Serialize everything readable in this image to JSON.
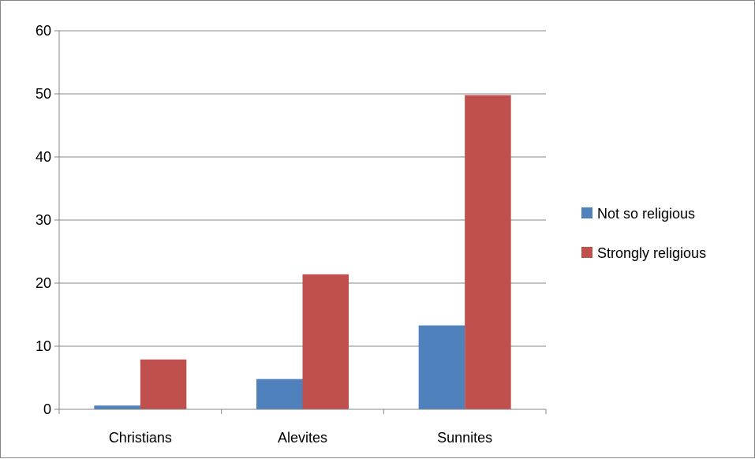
{
  "chart_data": {
    "type": "bar",
    "categories": [
      "Christians",
      "Alevites",
      "Sunnites"
    ],
    "series": [
      {
        "name": "Not so religious",
        "values": [
          0.6,
          4.8,
          13.3
        ],
        "color": "#4f81bd"
      },
      {
        "name": "Strongly religious",
        "values": [
          7.9,
          21.4,
          49.8
        ],
        "color": "#c0504d"
      }
    ],
    "yticks": [
      0,
      10,
      20,
      30,
      40,
      50,
      60
    ],
    "ylim": [
      0,
      60
    ],
    "grid": true,
    "legend_position": "right",
    "title": "",
    "xlabel": "",
    "ylabel": ""
  }
}
